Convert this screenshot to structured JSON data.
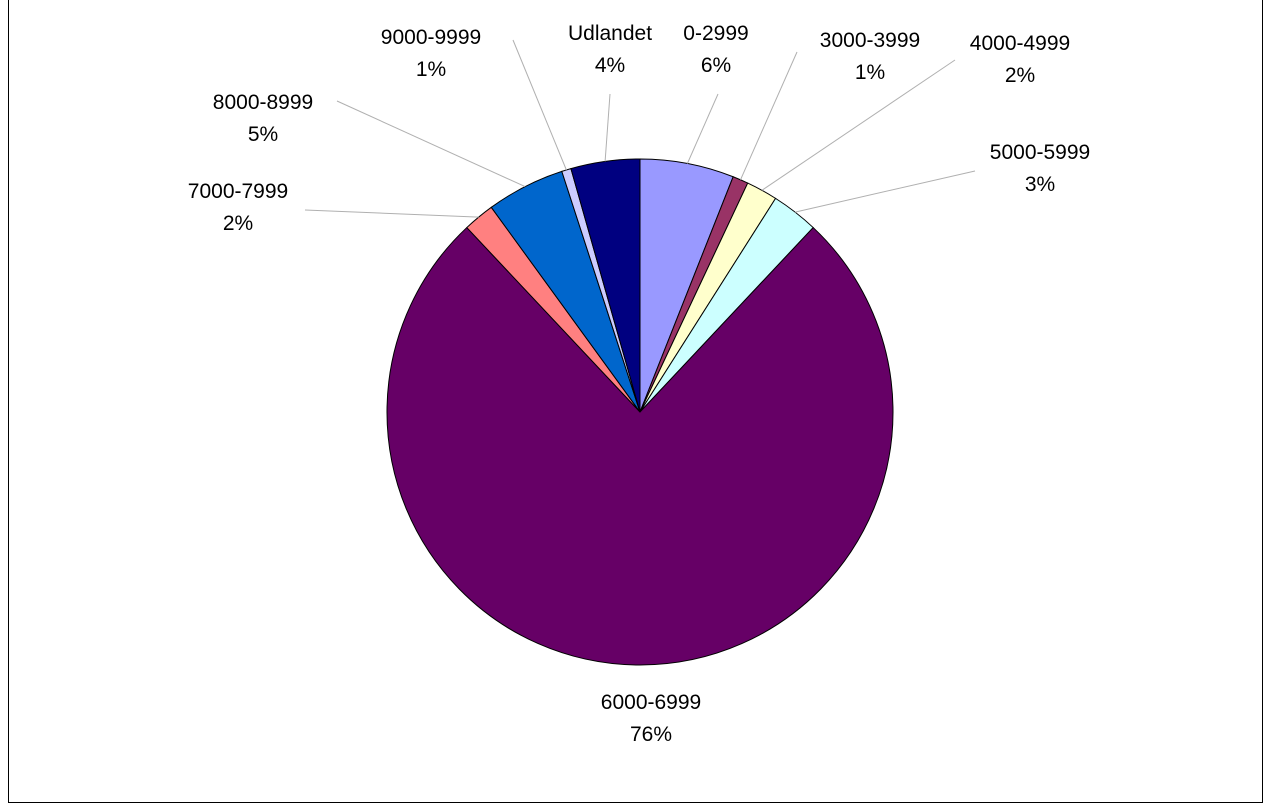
{
  "chart_data": {
    "type": "pie",
    "title": "",
    "start_angle_deg": 0,
    "direction": "clockwise",
    "slices": [
      {
        "label": "0-2999",
        "percent_label": "6%",
        "value": 6,
        "color": "#9999FF"
      },
      {
        "label": "3000-3999",
        "percent_label": "1%",
        "value": 1,
        "color": "#993366"
      },
      {
        "label": "4000-4999",
        "percent_label": "2%",
        "value": 2,
        "color": "#FFFFCC"
      },
      {
        "label": "5000-5999",
        "percent_label": "3%",
        "value": 3,
        "color": "#CCFFFF"
      },
      {
        "label": "6000-6999",
        "percent_label": "76%",
        "value": 76,
        "color": "#660066"
      },
      {
        "label": "7000-7999",
        "percent_label": "2%",
        "value": 2,
        "color": "#FF8080"
      },
      {
        "label": "8000-8999",
        "percent_label": "5%",
        "value": 5,
        "color": "#0066CC"
      },
      {
        "label": "9000-9999",
        "percent_label": "1%",
        "value": 0.6,
        "color": "#CCCCFF"
      },
      {
        "label": "Udlandet",
        "percent_label": "4%",
        "value": 4.4,
        "color": "#000080"
      }
    ]
  }
}
